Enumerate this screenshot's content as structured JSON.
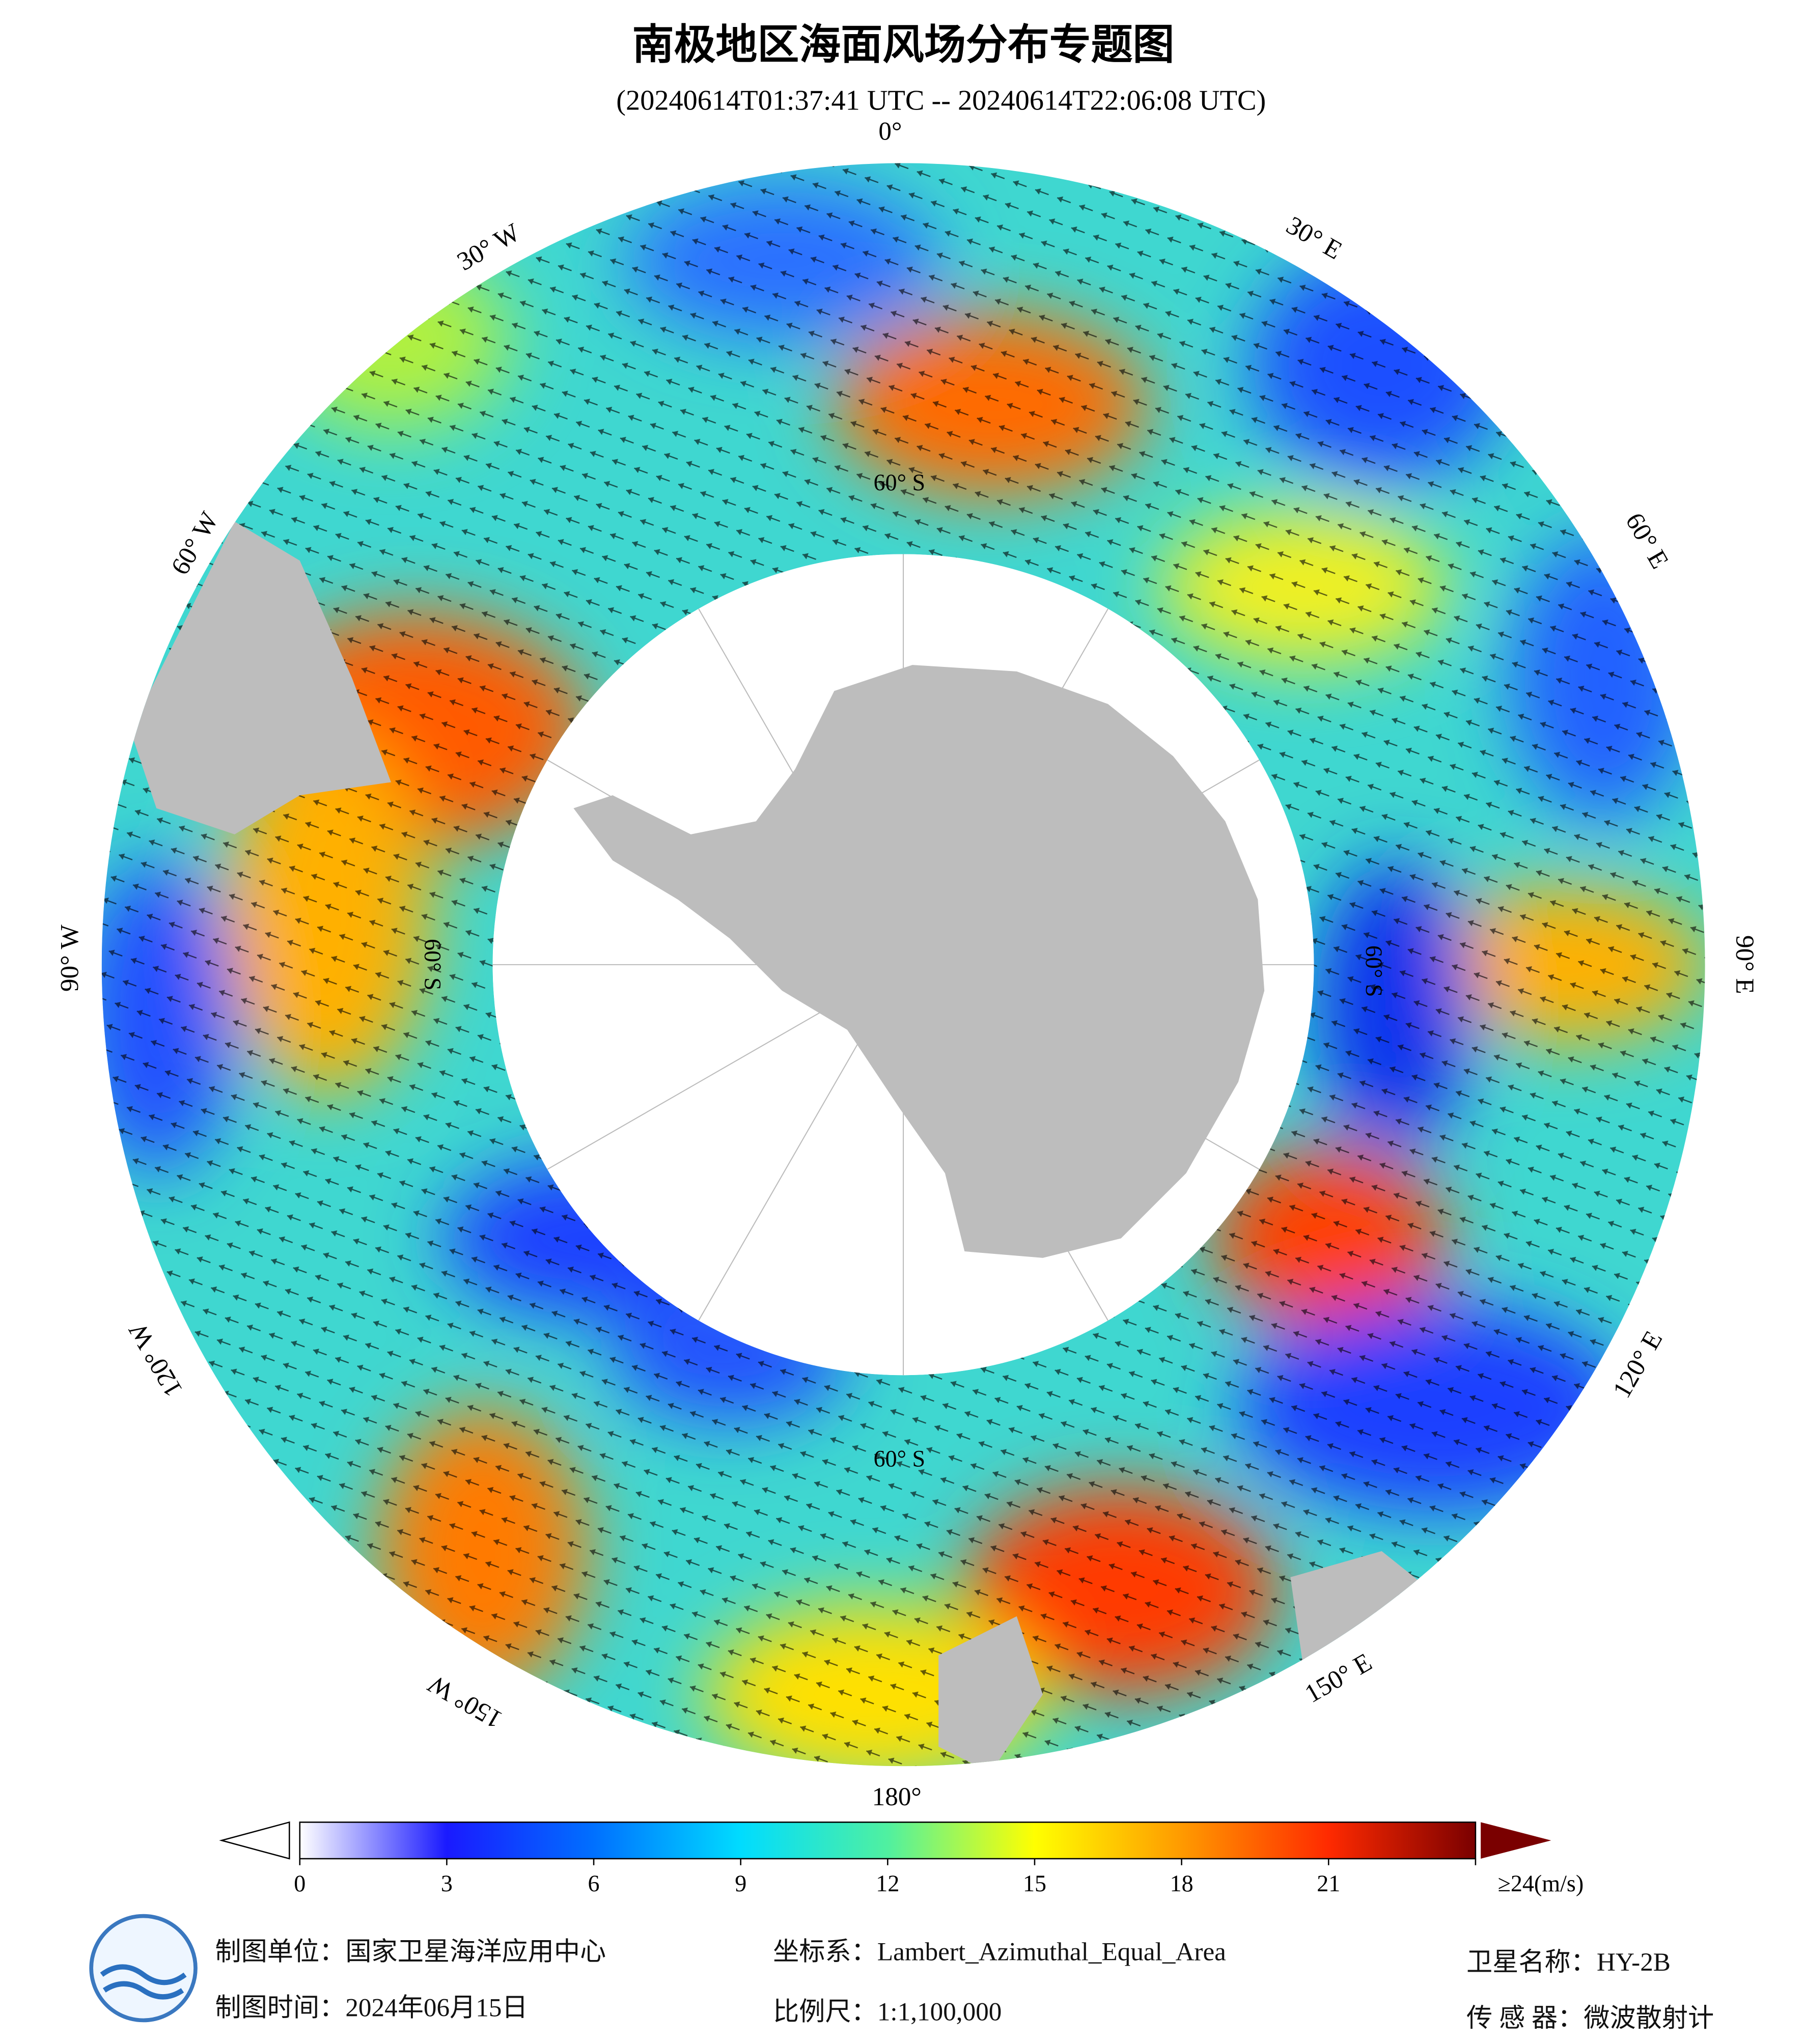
{
  "header": {
    "title": "南极地区海面风场分布专题图",
    "subtitle": "(20240614T01:37:41 UTC -- 20240614T22:06:08 UTC)"
  },
  "map": {
    "meridian_labels": [
      "0°",
      "30° E",
      "60° E",
      "90° E",
      "120° E",
      "150° E",
      "180°",
      "150° W",
      "120° W",
      "90° W",
      "60° W",
      "30° W"
    ],
    "latitude_labels": [
      "60° S",
      "60° S",
      "60° S",
      "60° S"
    ]
  },
  "colorbar": {
    "range": [
      0,
      24
    ],
    "ticks": [
      0,
      3,
      6,
      9,
      12,
      15,
      18,
      21,
      {
        "value": 24,
        "label": "≥24(m/s)"
      }
    ],
    "colors": [
      "#ffffff",
      "#1a1aff",
      "#0070ff",
      "#00dcff",
      "#50f0a0",
      "#ffff00",
      "#ff9a00",
      "#ff2a00",
      "#7a0000"
    ]
  },
  "footer": {
    "unit": "制图单位：国家卫星海洋应用中心",
    "date": "制图时间：2024年06月15日",
    "projection": "坐标系：Lambert_Azimuthal_Equal_Area",
    "scale": "比例尺：1:1,100,000",
    "satellite": "卫星名称：HY-2B",
    "sensor": "传 感 器：微波散射计"
  }
}
